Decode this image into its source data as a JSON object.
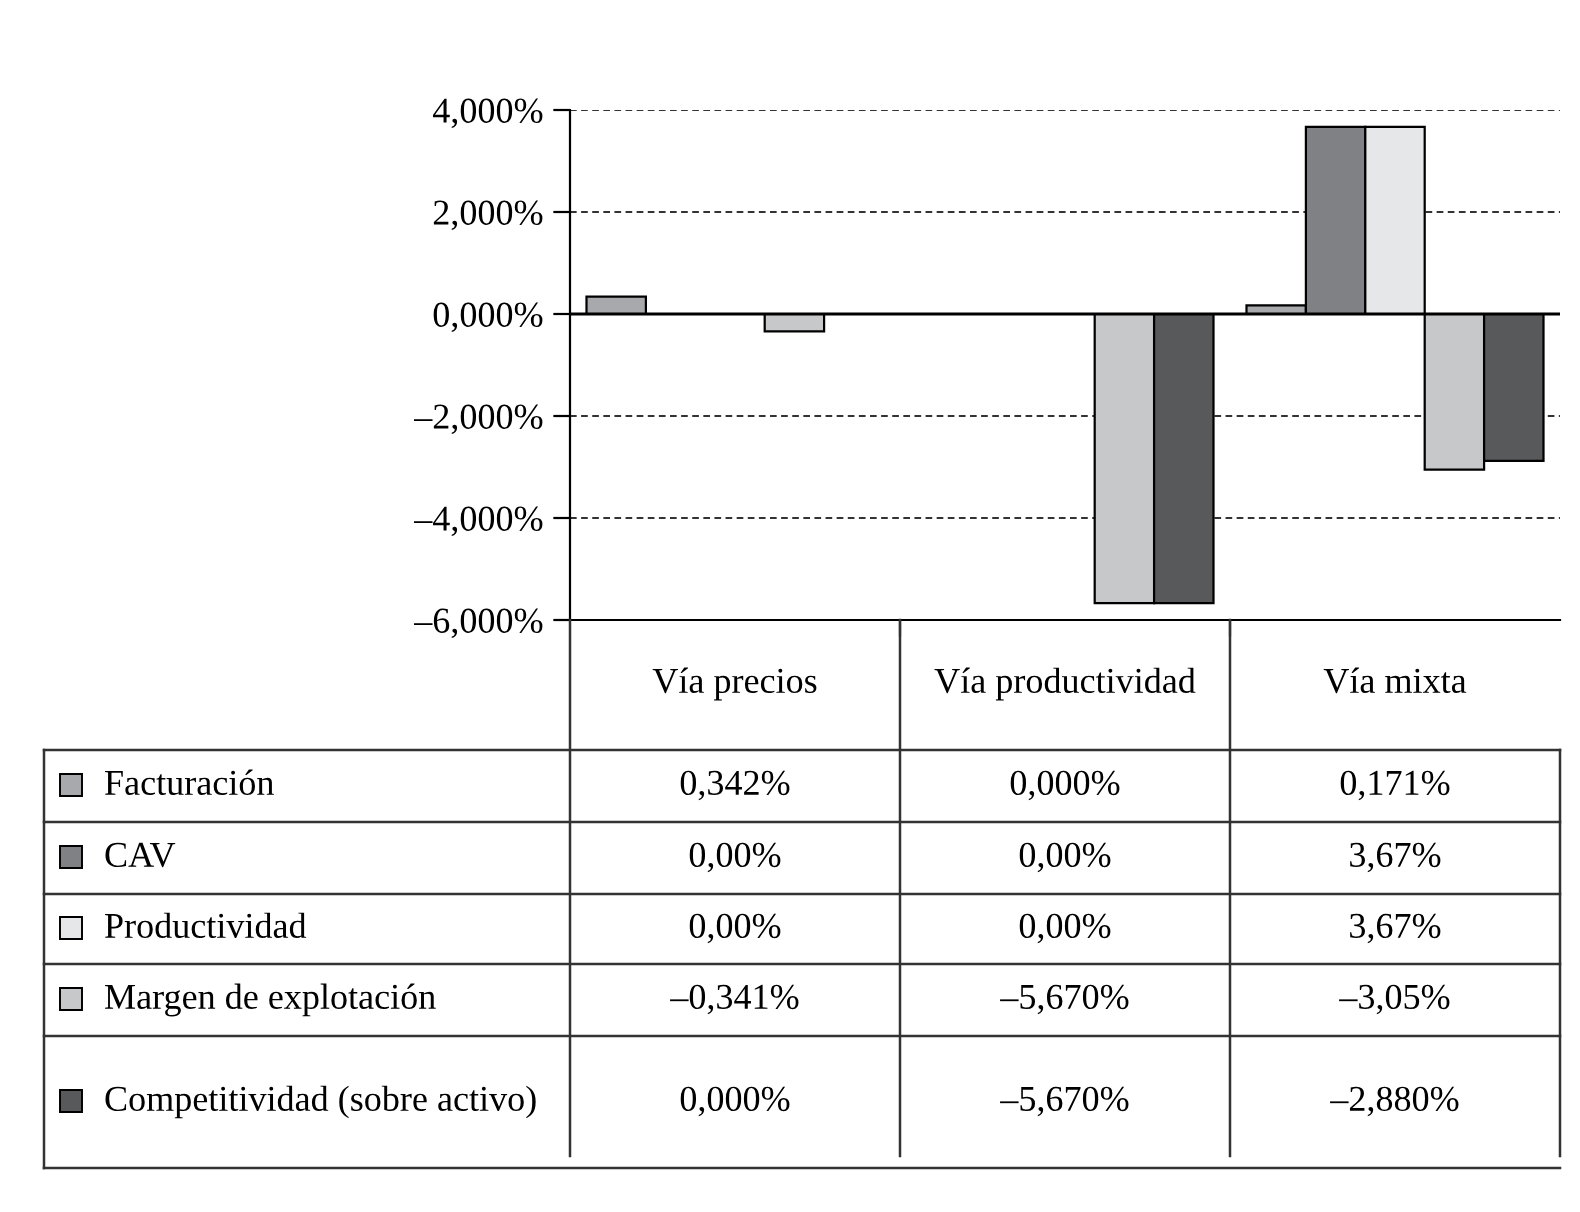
{
  "chart_data": {
    "type": "bar",
    "categories": [
      "Vía precios",
      "Vía productividad",
      "Vía mixta"
    ],
    "series": [
      {
        "name": "Facturación",
        "color": "#a8a9ad",
        "values": [
          0.342,
          0.0,
          0.171
        ],
        "value_labels": [
          "0,342%",
          "0,000%",
          "0,171%"
        ]
      },
      {
        "name": "CAV",
        "color": "#808184",
        "values": [
          0.0,
          0.0,
          3.67
        ],
        "value_labels": [
          "0,00%",
          "0,00%",
          "3,67%"
        ]
      },
      {
        "name": "Productividad",
        "color": "#e6e7e8",
        "values": [
          0.0,
          0.0,
          3.67
        ],
        "value_labels": [
          "0,00%",
          "0,00%",
          "3,67%"
        ]
      },
      {
        "name": "Margen de explotación",
        "color": "#c7c8ca",
        "values": [
          -0.341,
          -5.67,
          -3.05
        ],
        "value_labels": [
          "–0,341%",
          "–5,670%",
          "–3,05%"
        ]
      },
      {
        "name": "Competitividad (sobre activo)",
        "color": "#58595b",
        "values": [
          0.0,
          -5.67,
          -2.88
        ],
        "value_labels": [
          "0,000%",
          "–5,670%",
          "–2,880%"
        ]
      }
    ],
    "ylim": [
      -6,
      4
    ],
    "yticks": [
      {
        "value": 4,
        "label": "4,000%"
      },
      {
        "value": 2,
        "label": "2,000%"
      },
      {
        "value": 0,
        "label": "0,000%"
      },
      {
        "value": -2,
        "label": "–2,000%"
      },
      {
        "value": -4,
        "label": "–4,000%"
      },
      {
        "value": -6,
        "label": "–6,000%"
      }
    ],
    "grid": "y",
    "ref_lines": [
      {
        "axis": "y",
        "value": 0,
        "color": "#000000"
      }
    ],
    "legend": "bottom"
  }
}
